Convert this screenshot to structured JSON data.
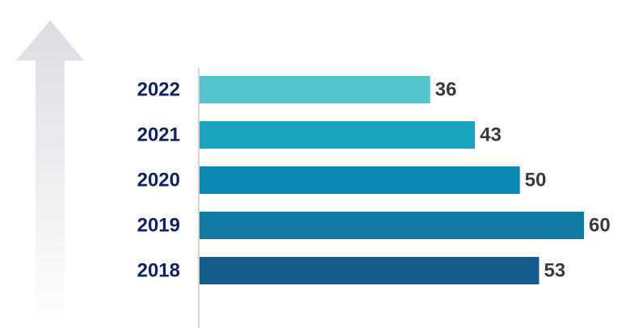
{
  "chart_data": {
    "type": "bar",
    "orientation": "horizontal",
    "categories": [
      "2022",
      "2021",
      "2020",
      "2019",
      "2018"
    ],
    "values": [
      36,
      43,
      50,
      60,
      53
    ],
    "xlim": [
      0,
      60
    ],
    "grid": false,
    "legend": "none",
    "bar_colors": [
      "#53c4cc",
      "#1aa5c1",
      "#0d88b2",
      "#137aa6",
      "#135e8c"
    ],
    "category_label_color": "#0f2361",
    "value_label_color": "#3a3a3a",
    "axis_line_color": "#c8c8c8",
    "arrow": {
      "icon": "up-arrow-icon",
      "color": "#dcdce3"
    }
  }
}
